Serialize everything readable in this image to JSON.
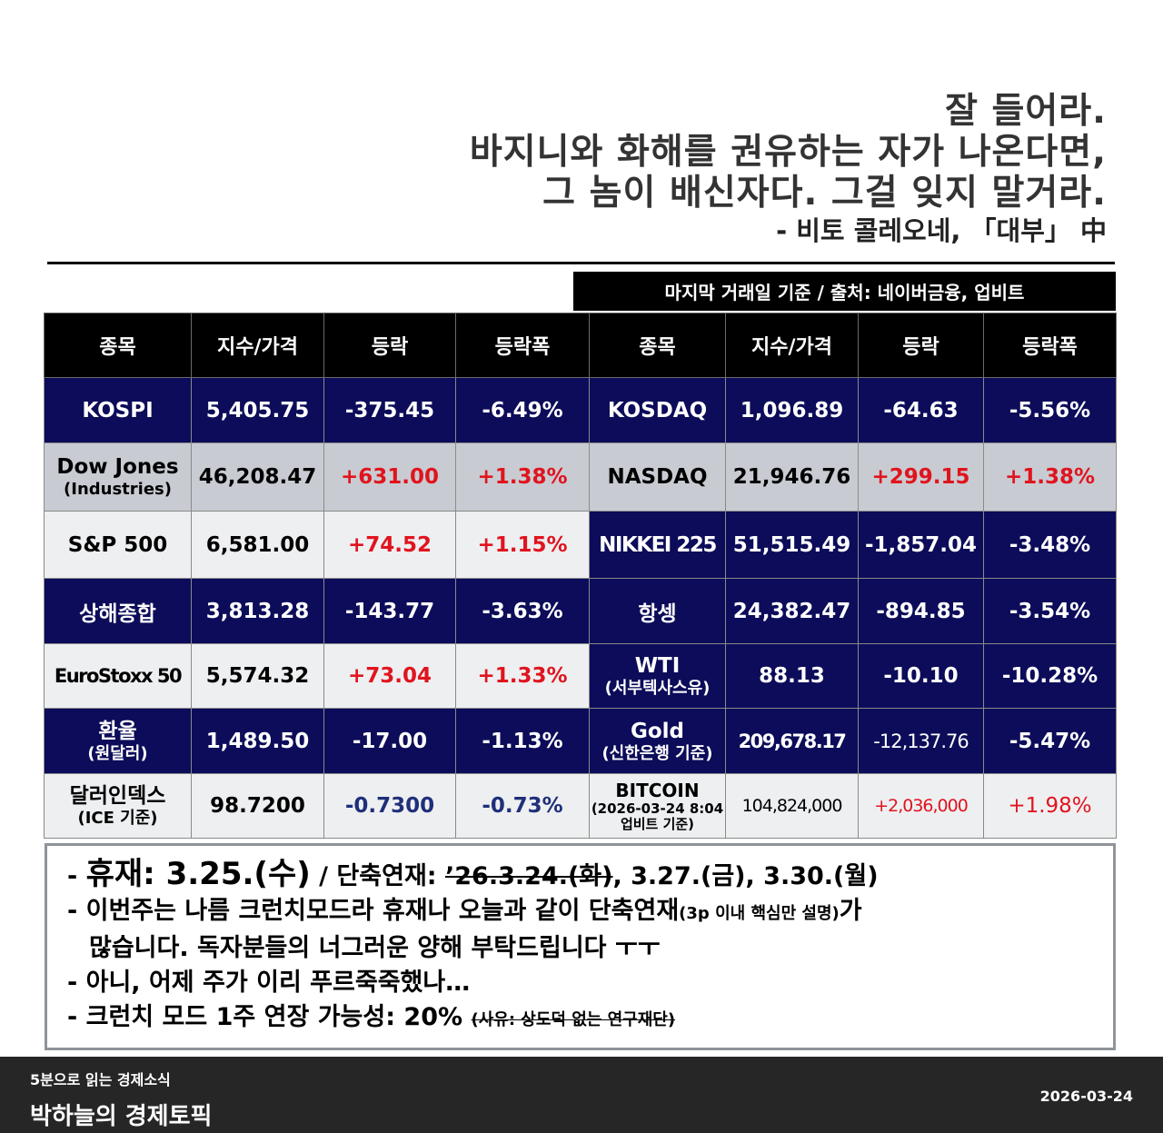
{
  "quote": {
    "lines": [
      "잘 들어라.",
      "바지니와 화해를 권유하는 자가 나온다면,",
      "그 놈이 배신자다. 그걸 잊지 말거라."
    ],
    "attribution": "- 비토 콜레오네, 「대부」 中"
  },
  "source_note": "마지막 거래일 기준 / 출처: 네이버금융, 업비트",
  "table": {
    "headers": [
      "종목",
      "지수/가격",
      "등락",
      "등락폭",
      "종목",
      "지수/가격",
      "등락",
      "등락폭"
    ],
    "rows": [
      {
        "left": {
          "name": "KOSPI",
          "sub": "",
          "price": "5,405.75",
          "change": "-375.45",
          "pct": "-6.49%"
        },
        "right": {
          "name": "KOSDAQ",
          "sub": "",
          "price": "1,096.89",
          "change": "-64.63",
          "pct": "-5.56%"
        }
      },
      {
        "left": {
          "name": "Dow Jones",
          "sub": "(Industries)",
          "price": "46,208.47",
          "change": "+631.00",
          "pct": "+1.38%"
        },
        "right": {
          "name": "NASDAQ",
          "sub": "",
          "price": "21,946.76",
          "change": "+299.15",
          "pct": "+1.38%"
        }
      },
      {
        "left": {
          "name": "S&P 500",
          "sub": "",
          "price": "6,581.00",
          "change": "+74.52",
          "pct": "+1.15%"
        },
        "right": {
          "name": "NIKKEI 225",
          "sub": "",
          "price": "51,515.49",
          "change": "-1,857.04",
          "pct": "-3.48%"
        }
      },
      {
        "left": {
          "name": "상해종합",
          "sub": "",
          "price": "3,813.28",
          "change": "-143.77",
          "pct": "-3.63%"
        },
        "right": {
          "name": "항셍",
          "sub": "",
          "price": "24,382.47",
          "change": "-894.85",
          "pct": "-3.54%"
        }
      },
      {
        "left": {
          "name": "EuroStoxx 50",
          "sub": "",
          "price": "5,574.32",
          "change": "+73.04",
          "pct": "+1.33%"
        },
        "right": {
          "name": "WTI",
          "sub": "(서부텍사스유)",
          "price": "88.13",
          "change": "-10.10",
          "pct": "-10.28%"
        }
      },
      {
        "left": {
          "name": "환율",
          "sub": "(원달러)",
          "price": "1,489.50",
          "change": "-17.00",
          "pct": "-1.13%"
        },
        "right": {
          "name": "Gold",
          "sub": "(신한은행 기준)",
          "price": "209,678.17",
          "change": "-12,137.76",
          "pct": "-5.47%"
        }
      },
      {
        "left": {
          "name": "달러인덱스",
          "sub": "(ICE 기준)",
          "price": "98.7200",
          "change": "-0.7300",
          "pct": "-0.73%"
        },
        "right": {
          "name": "BITCOIN",
          "sub": "(2026-03-24 8:04",
          "sub2": "업비트 기준)",
          "price": "104,824,000",
          "change": "+2,036,000",
          "pct": "+1.98%"
        }
      }
    ]
  },
  "notes": {
    "n1_dash": "- ",
    "n1_big": "휴재: 3.25.(수)",
    "n1_mid": " / 단축연재: ",
    "n1_strike": "’26.3.24.(화)",
    "n1_rest": ", 3.27.(금), 3.30.(월)",
    "n2_a": "- 이번주는 나름 크런치모드라 휴재나 오늘과 같이 단축연재",
    "n2_small": "(3p 이내 핵심만 설명)",
    "n2_b": "가",
    "n2_cont": "많습니다. 독자분들의 너그러운 양해 부탁드립니다 ㅜㅜ",
    "n3": "- 아니, 어제 주가 이리 푸르죽죽했나…",
    "n4_a": "- 크런치 모드 1주 연장 가능성: 20% ",
    "n4_strike": "(사유: 상도덕 없는 연구재단)"
  },
  "footer": {
    "subtitle": "5분으로 읽는 경제소식",
    "title": "박하늘의 경제토픽",
    "date": "2026-03-24"
  }
}
